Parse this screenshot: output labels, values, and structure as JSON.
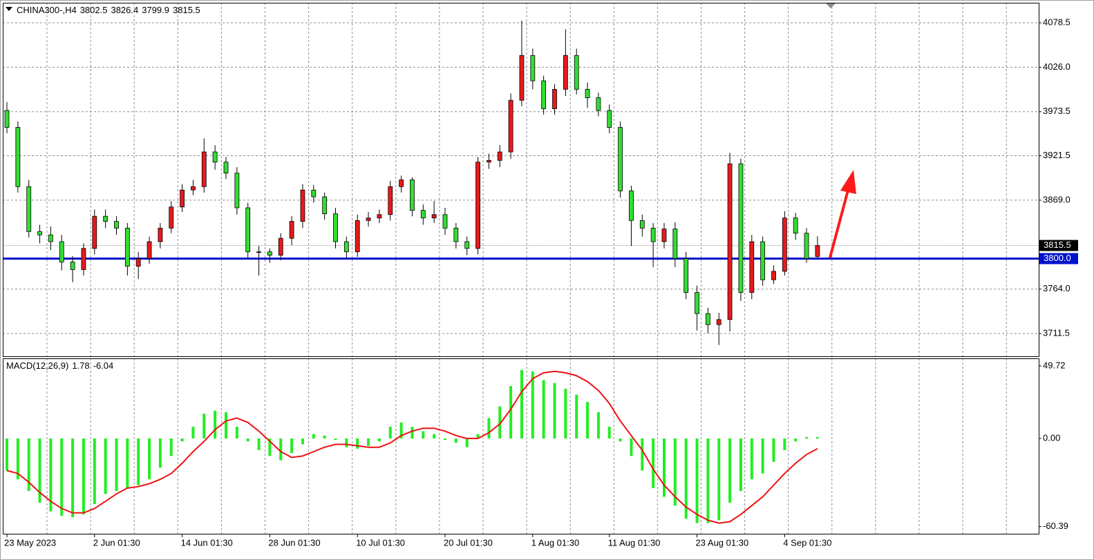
{
  "chart_data": [
    {
      "type": "candlestick",
      "title": "CHINA300-,H4",
      "header_values": [
        3802.5,
        3826.4,
        3799.9,
        3815.5
      ],
      "categories": [
        "23 May 2023",
        null,
        null,
        null,
        null,
        null,
        null,
        null,
        "2 Jun 01:30",
        null,
        null,
        null,
        null,
        null,
        null,
        null,
        "14 Jun 01:30",
        null,
        null,
        null,
        null,
        null,
        null,
        null,
        "28 Jun 01:30",
        null,
        null,
        null,
        null,
        null,
        null,
        null,
        "10 Jul 01:30",
        null,
        null,
        null,
        null,
        null,
        null,
        null,
        "20 Jul 01:30",
        null,
        null,
        null,
        null,
        null,
        null,
        null,
        "1 Aug 01:30",
        null,
        null,
        null,
        null,
        null,
        null,
        "11 Aug 01:30",
        null,
        null,
        null,
        null,
        null,
        null,
        null,
        "23 Aug 01:30",
        null,
        null,
        null,
        null,
        null,
        null,
        null,
        "4 Sep 01:30",
        null,
        null,
        null
      ],
      "open": [
        3975,
        3955,
        3885,
        3832,
        3828,
        3820,
        3796,
        3787,
        3812,
        3850,
        3844,
        3836,
        3791,
        3800,
        3820,
        3836,
        3861,
        3881,
        3885,
        3926,
        3914,
        3901,
        3860,
        3808,
        3808,
        3804,
        3824,
        3844,
        3881,
        3873,
        3853,
        3820,
        3808,
        3845,
        3848,
        3852,
        3885,
        3893,
        3857,
        3848,
        3852,
        3836,
        3820,
        3812,
        3914,
        3916,
        3926,
        3987,
        4040,
        4010,
        3977,
        4000,
        4040,
        4000,
        3990,
        3975,
        3955,
        3880,
        3845,
        3836,
        3820,
        3835,
        3800,
        3760,
        3735,
        3722,
        3728,
        3912,
        3760,
        3820,
        3775,
        3785,
        3848,
        3830,
        3802.5
      ],
      "high": [
        3985,
        3962,
        3893,
        3840,
        3838,
        3828,
        3803,
        3818,
        3858,
        3858,
        3850,
        3842,
        3808,
        3826,
        3842,
        3868,
        3888,
        3893,
        3942,
        3934,
        3920,
        3908,
        3866,
        3815,
        3812,
        3830,
        3850,
        3888,
        3887,
        3878,
        3860,
        3826,
        3852,
        3855,
        3858,
        3892,
        3898,
        3896,
        3864,
        3868,
        3860,
        3842,
        3826,
        3920,
        3924,
        3934,
        3995,
        4081,
        4048,
        4016,
        4006,
        4071,
        4048,
        4008,
        3996,
        3982,
        3962,
        3886,
        3852,
        3842,
        3842,
        3843,
        3808,
        3768,
        3742,
        3736,
        3925,
        3918,
        3828,
        3826,
        3792,
        3856,
        3854,
        3836,
        3826.4
      ],
      "low": [
        3948,
        3878,
        3825,
        3818,
        3810,
        3786,
        3772,
        3780,
        3805,
        3836,
        3828,
        3780,
        3776,
        3794,
        3812,
        3830,
        3855,
        3875,
        3878,
        3905,
        3894,
        3852,
        3800,
        3780,
        3795,
        3798,
        3816,
        3836,
        3866,
        3846,
        3812,
        3800,
        3802,
        3838,
        3842,
        3845,
        3878,
        3850,
        3840,
        3842,
        3828,
        3812,
        3804,
        3805,
        3906,
        3908,
        3918,
        3980,
        4000,
        3970,
        3970,
        3992,
        3994,
        3978,
        3968,
        3948,
        3872,
        3815,
        3826,
        3790,
        3812,
        3790,
        3752,
        3715,
        3712,
        3698,
        3714,
        3750,
        3752,
        3768,
        3770,
        3780,
        3822,
        3795,
        3799.9
      ],
      "close": [
        3955,
        3885,
        3832,
        3828,
        3820,
        3796,
        3787,
        3812,
        3850,
        3844,
        3836,
        3791,
        3800,
        3820,
        3836,
        3861,
        3881,
        3885,
        3926,
        3914,
        3901,
        3860,
        3808,
        3808,
        3804,
        3824,
        3844,
        3881,
        3873,
        3853,
        3820,
        3808,
        3845,
        3848,
        3852,
        3885,
        3893,
        3857,
        3848,
        3852,
        3836,
        3820,
        3812,
        3914,
        3916,
        3926,
        3987,
        4040,
        4010,
        3977,
        4000,
        4040,
        4000,
        3990,
        3975,
        3955,
        3880,
        3845,
        3836,
        3820,
        3835,
        3800,
        3760,
        3735,
        3722,
        3728,
        3912,
        3760,
        3820,
        3775,
        3785,
        3848,
        3830,
        3800,
        3815.5
      ],
      "up_color": "#e8191e",
      "down_color": "#33dd33",
      "ylim": [
        3684.6,
        4102.2
      ],
      "yticks": [
        {
          "value": 4078.5,
          "label": "4078.5"
        },
        {
          "value": 4026,
          "label": "4026.0"
        },
        {
          "value": 3973.5,
          "label": "3973.5"
        },
        {
          "value": 3921.5,
          "label": "3921.5"
        },
        {
          "value": 3869,
          "label": "3869.0"
        },
        {
          "value": 3764,
          "label": "3764.0"
        },
        {
          "value": 3711.5,
          "label": "3711.5"
        }
      ],
      "grid": true,
      "current_price": 3815.5,
      "level": {
        "value": 3800,
        "label": "3800.0"
      },
      "level_color": "#0011cc"
    },
    {
      "type": "macd",
      "title": "MACD(12,26,9)",
      "header_values": [
        1.78,
        -6.04
      ],
      "histogram_values": [
        -22,
        -28,
        -36,
        -44,
        -50,
        -53,
        -54,
        -52,
        -45,
        -38,
        -36,
        -34,
        -32,
        -28,
        -20,
        -12,
        -2,
        8,
        17,
        19,
        18,
        8,
        -2,
        -8,
        -12,
        -15,
        -10,
        -4,
        3,
        2,
        -1,
        -6,
        -7,
        -5,
        -2,
        8,
        11,
        8,
        5,
        3,
        -1,
        -3,
        -6,
        3,
        14,
        22,
        36,
        47,
        46,
        40,
        38,
        34,
        30,
        25,
        18,
        8,
        -2,
        -12,
        -22,
        -34,
        -40,
        -46,
        -55,
        -58,
        -58,
        -56,
        -44,
        -36,
        -28,
        -24,
        -16,
        -8,
        -2,
        1,
        1
      ],
      "histogram_color": "#22ee22",
      "signal_values": [
        -22,
        -24,
        -30,
        -37,
        -43,
        -48,
        -51,
        -51,
        -48,
        -43,
        -38,
        -34,
        -33,
        -31,
        -28,
        -24,
        -17,
        -9,
        -2,
        6,
        12,
        14,
        11,
        5,
        -2,
        -9,
        -13,
        -12,
        -9,
        -6,
        -4,
        -4,
        -5,
        -6,
        -6,
        -3,
        2,
        5,
        7,
        7,
        5,
        2,
        0,
        0,
        4,
        10,
        20,
        32,
        41,
        45,
        46,
        45,
        43,
        39,
        33,
        24,
        12,
        2,
        -8,
        -21,
        -32,
        -40,
        -47,
        -52,
        -56,
        -58,
        -57,
        -52,
        -46,
        -40,
        -32,
        -24,
        -17,
        -11,
        -7
      ],
      "signal_color": "#ee1111",
      "ylim": [
        -65.3,
        54.9
      ],
      "yticks": [
        49.72,
        {
          "value": 0,
          "label": "0.00"
        },
        -60.39
      ]
    }
  ]
}
